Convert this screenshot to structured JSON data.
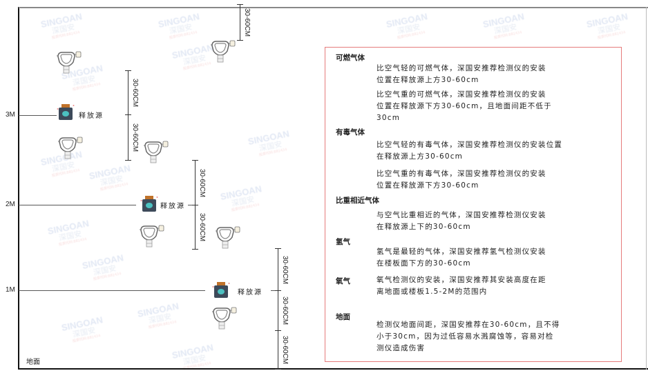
{
  "watermark": {
    "brand": "SINGOAN",
    "cn": "深国安",
    "sub": "股票代码:881434"
  },
  "levels": {
    "l3": "3M",
    "l2": "2M",
    "l1": "1M",
    "floor": "地面"
  },
  "source_label": "释放源",
  "dimension_label": "30-60CM",
  "colors": {
    "box_border": "#e57b7b",
    "source_body": "#3d4a5a",
    "source_cap": "#c0722a",
    "source_face": "#4cc1c1"
  },
  "notes": {
    "combustible": {
      "title": "可燃气体",
      "lighter": [
        "比空气轻的可燃气体，深国安推荐检测仪的安装",
        "位置在释放源上方30-60cm"
      ],
      "heavier": [
        "比空气重的可燃气体，深国安推荐检测仪的安装",
        "位置在释放源下方30-60cm，且地面间距不低于",
        "30cm"
      ]
    },
    "toxic": {
      "title": "有毒气体",
      "lighter": [
        "比空气轻的有毒气体，深国安推荐检测仪的安装位置",
        "在释放源上方30-60cm"
      ],
      "heavier": [
        "比空气重的有毒气体，深国安推荐检测仪的安装",
        "位置在释放源下方30-60cm"
      ]
    },
    "similar": {
      "title": "比重相近气体",
      "text": [
        "与空气比重相近的气体，深国安推荐检测仪安装",
        "在释放源上下的30-60cm"
      ]
    },
    "hydrogen": {
      "title": "氢气",
      "text": [
        "氢气是最轻的气体，深国安推荐氢气检测仪安装",
        "在楼板面下方的30-60cm"
      ]
    },
    "oxygen": {
      "title": "氧气",
      "text": [
        "氧气检测仪的安装，深国安推荐其安装高度在距",
        "离地面或楼板1.5-2M的范围内"
      ]
    },
    "ground": {
      "title": "地面",
      "text": [
        "检测仪地面间距，深国安推荐在30-60cm，且不得",
        "小于30cm，因为过低容易水溅腐蚀等，容易对检",
        "测仪造成伤害"
      ]
    }
  }
}
